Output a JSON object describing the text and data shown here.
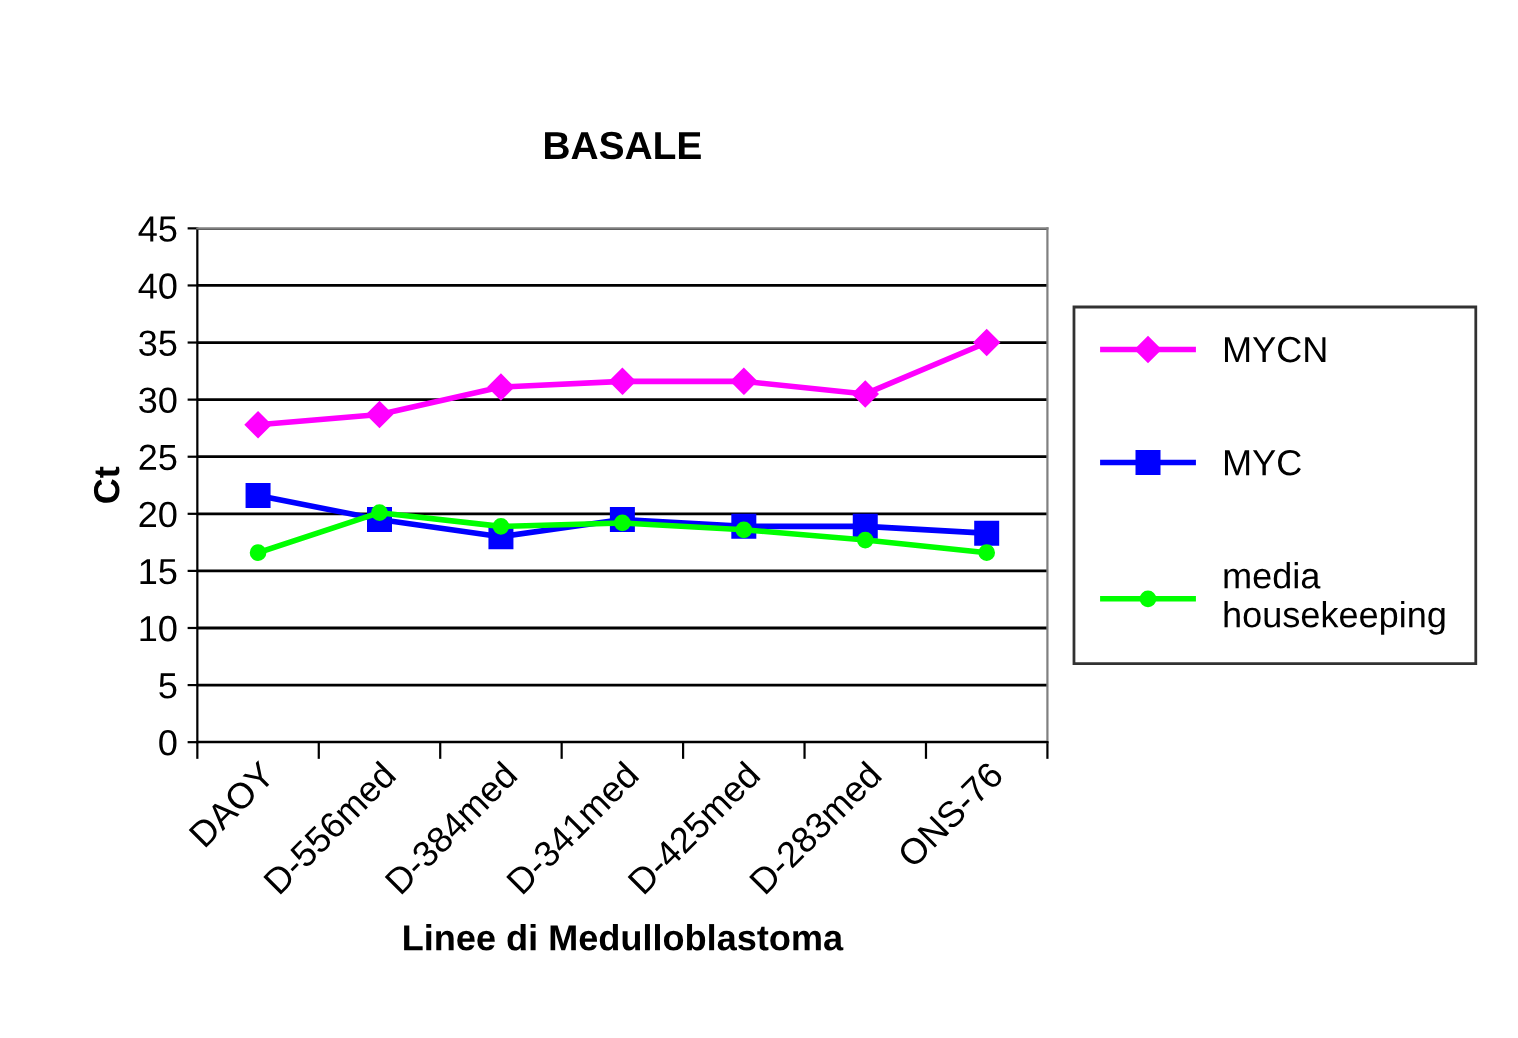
{
  "chart_data": {
    "type": "line",
    "title": "BASALE",
    "xlabel": "Linee di Medulloblastoma",
    "ylabel": "Ct",
    "categories": [
      "DAOY",
      "D-556med",
      "D-384med",
      "D-341med",
      "D-425med",
      "D-283med",
      "ONS-76"
    ],
    "series": [
      {
        "name": "MYCN",
        "color": "#ff00ff",
        "marker": "diamond",
        "values": [
          27.8,
          28.7,
          31.1,
          31.6,
          31.6,
          30.5,
          35.0
        ]
      },
      {
        "name": "MYC",
        "color": "#0000ff",
        "marker": "square",
        "values": [
          21.6,
          19.5,
          18.0,
          19.5,
          18.9,
          18.9,
          18.3
        ]
      },
      {
        "name": "media\nhousekeeping",
        "color": "#00ff00",
        "marker": "circle",
        "values": [
          16.6,
          20.1,
          18.9,
          19.2,
          18.6,
          17.7,
          16.6
        ]
      }
    ],
    "ylim": [
      0,
      45
    ],
    "yticks": [
      0,
      5,
      10,
      15,
      20,
      25,
      30,
      35,
      40,
      45
    ],
    "grid": "y",
    "legend": "right"
  }
}
